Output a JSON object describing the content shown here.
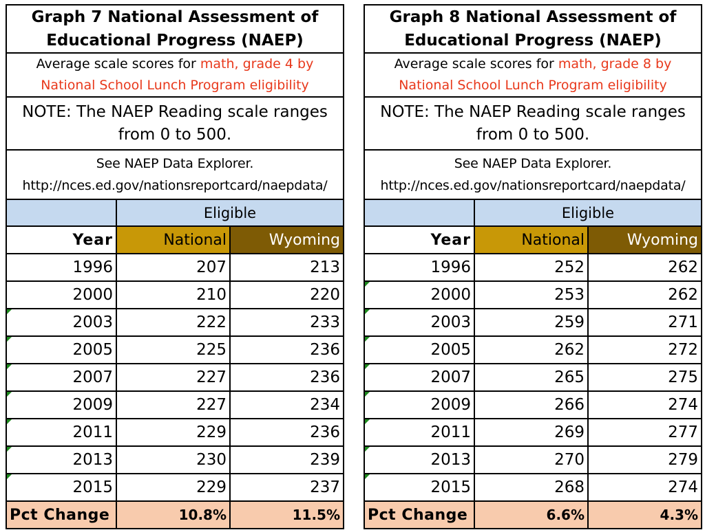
{
  "left": {
    "title_line1": "Graph 7 National Assessment of",
    "title_line2": "Educational Progress (NAEP)",
    "subtitle_prefix": "Average scale scores for ",
    "subtitle_red1": "math, grade 4 by",
    "subtitle_red2": "National School Lunch Program eligibility",
    "note_line1": "NOTE: The NAEP Reading scale ranges",
    "note_line2": "from 0 to 500.",
    "explorer_line1": "See NAEP Data Explorer.",
    "explorer_line2": "http://nces.ed.gov/nationsreportcard/naepdata/",
    "eligible_label": "Eligible",
    "col_year": "Year",
    "col_national": "National",
    "col_wyoming": "Wyoming",
    "rows": [
      {
        "year": "1996",
        "national": "207",
        "wyoming": "213"
      },
      {
        "year": "2000",
        "national": "210",
        "wyoming": "220"
      },
      {
        "year": "2003",
        "national": "222",
        "wyoming": "233"
      },
      {
        "year": "2005",
        "national": "225",
        "wyoming": "236"
      },
      {
        "year": "2007",
        "national": "227",
        "wyoming": "236"
      },
      {
        "year": "2009",
        "national": "227",
        "wyoming": "234"
      },
      {
        "year": "2011",
        "national": "229",
        "wyoming": "236"
      },
      {
        "year": "2013",
        "national": "230",
        "wyoming": "239"
      },
      {
        "year": "2015",
        "national": "229",
        "wyoming": "237"
      }
    ],
    "pct_label": "Pct Change",
    "pct_national": "10.8%",
    "pct_wyoming": "11.5%"
  },
  "right": {
    "title_line1": "Graph 8 National Assessment of",
    "title_line2": "Educational Progress (NAEP)",
    "subtitle_prefix": "Average scale scores for ",
    "subtitle_red1": "math, grade 8 by",
    "subtitle_red2": "National School Lunch Program eligibility",
    "note_line1": "NOTE: The NAEP Reading scale ranges",
    "note_line2": "from 0 to 500.",
    "explorer_line1": "See NAEP Data Explorer.",
    "explorer_line2": "http://nces.ed.gov/nationsreportcard/naepdata/",
    "eligible_label": "Eligible",
    "col_year": "Year",
    "col_national": "National",
    "col_wyoming": "Wyoming",
    "rows": [
      {
        "year": "1996",
        "national": "252",
        "wyoming": "262"
      },
      {
        "year": "2000",
        "national": "253",
        "wyoming": "262"
      },
      {
        "year": "2003",
        "national": "259",
        "wyoming": "271"
      },
      {
        "year": "2005",
        "national": "262",
        "wyoming": "272"
      },
      {
        "year": "2007",
        "national": "265",
        "wyoming": "275"
      },
      {
        "year": "2009",
        "national": "266",
        "wyoming": "274"
      },
      {
        "year": "2011",
        "national": "269",
        "wyoming": "277"
      },
      {
        "year": "2013",
        "national": "270",
        "wyoming": "279"
      },
      {
        "year": "2015",
        "national": "268",
        "wyoming": "274"
      }
    ],
    "pct_label": "Pct Change",
    "pct_national": "6.6%",
    "pct_wyoming": "4.3%"
  },
  "colors": {
    "accent_red": "#e8381b",
    "eligible_bg": "#c5d9ef",
    "national_bg": "#c89807",
    "wyoming_bg": "#7e5b05",
    "pct_bg": "#f8cbad",
    "comment_marker": "#1f8a1f"
  }
}
